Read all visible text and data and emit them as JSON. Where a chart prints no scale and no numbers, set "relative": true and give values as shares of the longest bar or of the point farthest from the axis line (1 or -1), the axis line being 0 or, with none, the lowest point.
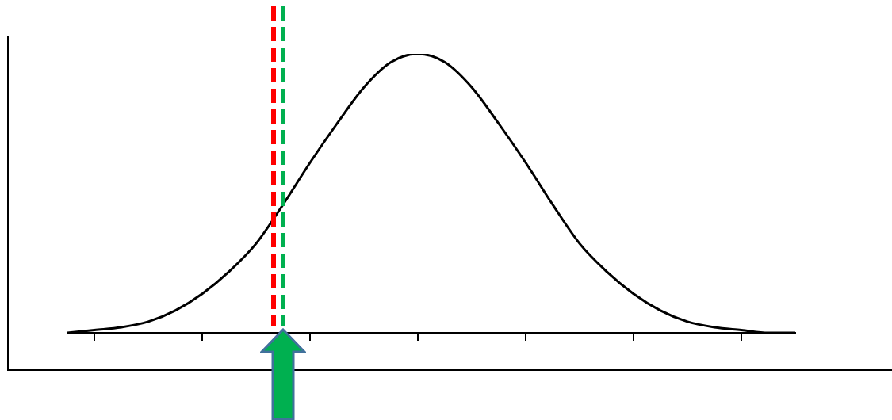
{
  "chart_data": {
    "type": "line",
    "relative": true,
    "color": "#000000",
    "categories": [
      null,
      null,
      null,
      null,
      null,
      null,
      null,
      null,
      null,
      null,
      null,
      null,
      null,
      null,
      null,
      null,
      null,
      null,
      null,
      null,
      null,
      null,
      null,
      null,
      null,
      null,
      null,
      null
    ],
    "values": [
      0,
      0.01,
      0.02,
      0.04,
      0.08,
      0.14,
      0.22,
      0.32,
      0.46,
      0.61,
      0.75,
      0.88,
      0.97,
      1,
      0.97,
      0.88,
      0.75,
      0.61,
      0.46,
      0.32,
      0.22,
      0.14,
      0.08,
      0.04,
      0.02,
      0.01,
      0,
      0
    ],
    "tick_labels": false,
    "marker": "none"
  }
}
